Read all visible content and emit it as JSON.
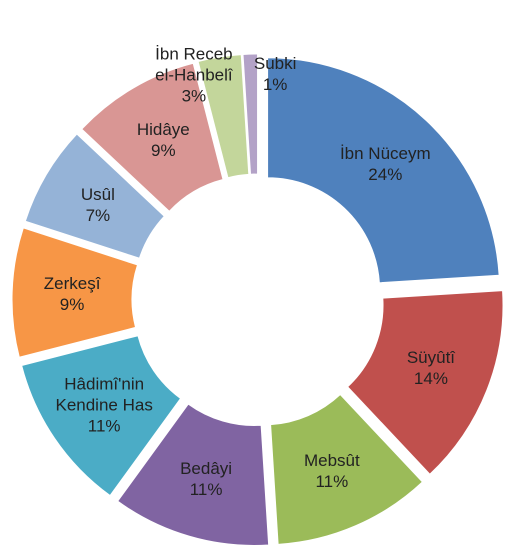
{
  "chart_data": {
    "type": "donut",
    "categories": [
      "İbn Nüceym",
      "Süyûtî",
      "Mebsût",
      "Bedâyi",
      "Hâdimî'nin Kendine Has",
      "Zerkeşî",
      "Usûl",
      "Hidâye",
      "İbn Receb el-Hanbelî",
      "Subki"
    ],
    "values": [
      24,
      14,
      11,
      11,
      11,
      9,
      7,
      9,
      3,
      1
    ],
    "value_labels": [
      "24%",
      "14%",
      "11%",
      "11%",
      "11%",
      "9%",
      "7%",
      "9%",
      "3%",
      "1%"
    ],
    "colors": [
      "#4f81bd",
      "#c0504d",
      "#9bbb59",
      "#8064a2",
      "#4bacc6",
      "#f79646",
      "#95b3d7",
      "#d99694",
      "#c3d69b",
      "#b3a2c7"
    ]
  }
}
